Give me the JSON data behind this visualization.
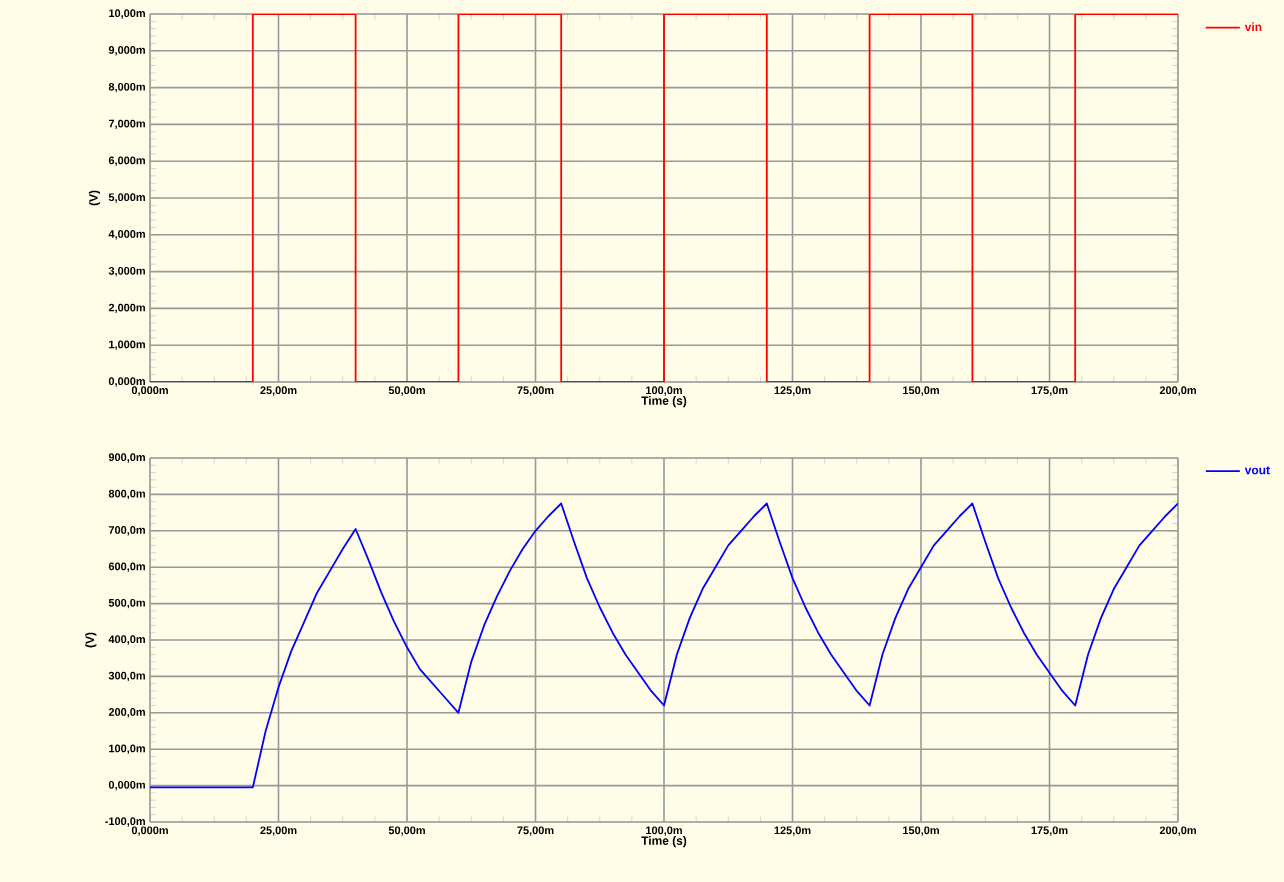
{
  "chart_data": [
    {
      "type": "line",
      "xlabel": "Time (s)",
      "ylabel": "(V)",
      "grid": true,
      "legend": "top right",
      "xlim": [
        0,
        200
      ],
      "ylim": [
        0,
        10
      ],
      "xticks": [
        {
          "value": 0,
          "label": "0,000m"
        },
        {
          "value": 25,
          "label": "25,00m"
        },
        {
          "value": 50,
          "label": "50,00m"
        },
        {
          "value": 75,
          "label": "75,00m"
        },
        {
          "value": 100,
          "label": "100,0m"
        },
        {
          "value": 125,
          "label": "125,0m"
        },
        {
          "value": 150,
          "label": "150,0m"
        },
        {
          "value": 175,
          "label": "175,0m"
        },
        {
          "value": 200,
          "label": "200,0m"
        }
      ],
      "yticks": [
        {
          "value": 0,
          "label": "0,000m"
        },
        {
          "value": 1,
          "label": "1,000m"
        },
        {
          "value": 2,
          "label": "2,000m"
        },
        {
          "value": 3,
          "label": "3,000m"
        },
        {
          "value": 4,
          "label": "4,000m"
        },
        {
          "value": 5,
          "label": "5,000m"
        },
        {
          "value": 6,
          "label": "6,000m"
        },
        {
          "value": 7,
          "label": "7,000m"
        },
        {
          "value": 8,
          "label": "8,000m"
        },
        {
          "value": 9,
          "label": "9,000m"
        },
        {
          "value": 10,
          "label": "10,00m"
        }
      ],
      "series": [
        {
          "name": "vin",
          "color": "#ff0000",
          "x": [
            0,
            20,
            20,
            40,
            40,
            60,
            60,
            80,
            80,
            100,
            100,
            120,
            120,
            140,
            140,
            160,
            160,
            180,
            180,
            200
          ],
          "values": [
            0,
            0,
            10,
            10,
            0,
            0,
            10,
            10,
            0,
            0,
            10,
            10,
            0,
            0,
            10,
            10,
            0,
            0,
            10,
            10
          ]
        }
      ]
    },
    {
      "type": "line",
      "xlabel": "Time (s)",
      "ylabel": "(V)",
      "grid": true,
      "legend": "top right",
      "xlim": [
        0,
        200
      ],
      "ylim": [
        -100,
        900
      ],
      "xticks": [
        {
          "value": 0,
          "label": "0,000m"
        },
        {
          "value": 25,
          "label": "25,00m"
        },
        {
          "value": 50,
          "label": "50,00m"
        },
        {
          "value": 75,
          "label": "75,00m"
        },
        {
          "value": 100,
          "label": "100,0m"
        },
        {
          "value": 125,
          "label": "125,0m"
        },
        {
          "value": 150,
          "label": "150,0m"
        },
        {
          "value": 175,
          "label": "175,0m"
        },
        {
          "value": 200,
          "label": "200,0m"
        }
      ],
      "yticks": [
        {
          "value": -100,
          "label": "-100,0m"
        },
        {
          "value": 0,
          "label": "0,000m"
        },
        {
          "value": 100,
          "label": "100,0m"
        },
        {
          "value": 200,
          "label": "200,0m"
        },
        {
          "value": 300,
          "label": "300,0m"
        },
        {
          "value": 400,
          "label": "400,0m"
        },
        {
          "value": 500,
          "label": "500,0m"
        },
        {
          "value": 600,
          "label": "600,0m"
        },
        {
          "value": 700,
          "label": "700,0m"
        },
        {
          "value": 800,
          "label": "800,0m"
        },
        {
          "value": 900,
          "label": "900,0m"
        }
      ],
      "series": [
        {
          "name": "vout",
          "color": "#0000ff",
          "x": [
            0,
            20,
            22.5,
            25,
            27.5,
            30,
            32.5,
            35,
            37.5,
            40,
            42.5,
            45,
            47.5,
            50,
            52.5,
            55,
            57.5,
            60,
            62.5,
            65,
            67.5,
            70,
            72.5,
            75,
            77.5,
            80,
            82.5,
            85,
            87.5,
            90,
            92.5,
            95,
            97.5,
            100,
            102.5,
            105,
            107.5,
            110,
            112.5,
            115,
            117.5,
            120,
            122.5,
            125,
            127.5,
            130,
            132.5,
            135,
            137.5,
            140,
            142.5,
            145,
            147.5,
            150,
            152.5,
            155,
            157.5,
            160,
            162.5,
            165,
            167.5,
            170,
            172.5,
            175,
            177.5,
            180,
            182.5,
            185,
            187.5,
            190,
            192.5,
            195,
            197.5,
            200
          ],
          "values": [
            -5,
            -5,
            150,
            270,
            370,
            450,
            530,
            590,
            650,
            705,
            620,
            530,
            450,
            380,
            320,
            280,
            240,
            200,
            340,
            440,
            520,
            590,
            650,
            700,
            740,
            775,
            670,
            570,
            490,
            420,
            360,
            310,
            260,
            220,
            360,
            460,
            540,
            600,
            660,
            700,
            740,
            775,
            670,
            570,
            490,
            420,
            360,
            310,
            260,
            220,
            360,
            460,
            540,
            600,
            660,
            700,
            740,
            775,
            670,
            570,
            490,
            420,
            360,
            310,
            260,
            220,
            360,
            460,
            540,
            600,
            660,
            700,
            740,
            775
          ]
        }
      ]
    }
  ]
}
